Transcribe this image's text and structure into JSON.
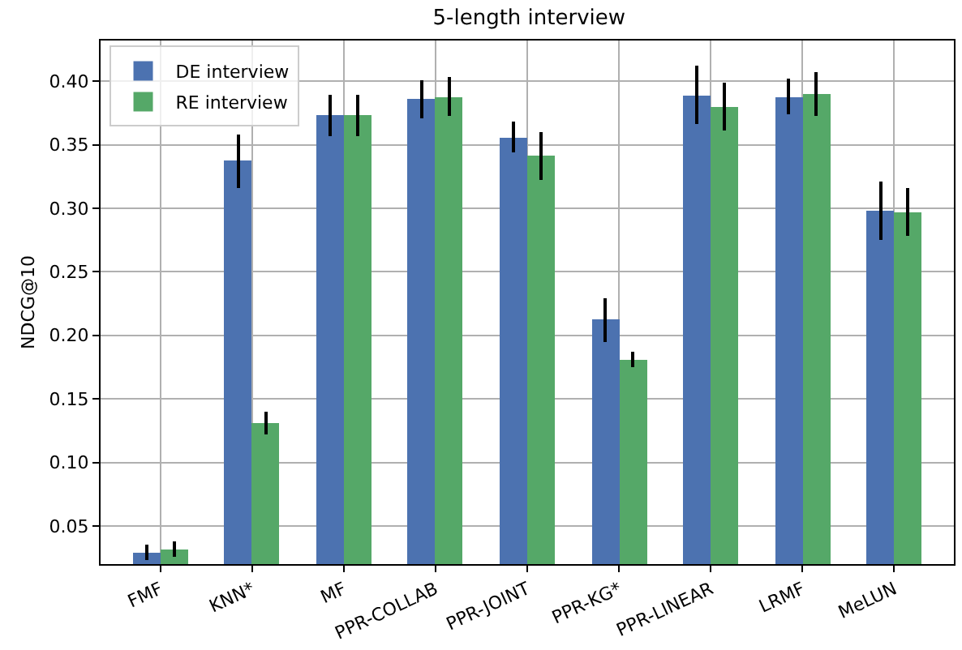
{
  "chart_data": {
    "type": "bar",
    "title": "5-length interview",
    "ylabel": "NDCG@10",
    "categories": [
      "FMF",
      "KNN*",
      "MF",
      "PPR-COLLAB",
      "PPR-JOINT",
      "PPR-KG*",
      "PPR-LINEAR",
      "LRMF",
      "MeLUN"
    ],
    "series": [
      {
        "name": "DE interview",
        "color": "#4c72b0",
        "values": [
          0.029,
          0.337,
          0.373,
          0.386,
          0.356,
          0.212,
          0.389,
          0.388,
          0.298
        ],
        "errors": [
          0.006,
          0.021,
          0.016,
          0.015,
          0.012,
          0.017,
          0.023,
          0.014,
          0.023
        ]
      },
      {
        "name": "RE interview",
        "color": "#55a868",
        "values": [
          0.032,
          0.131,
          0.373,
          0.388,
          0.341,
          0.181,
          0.38,
          0.39,
          0.297
        ],
        "errors": [
          0.006,
          0.009,
          0.016,
          0.015,
          0.019,
          0.006,
          0.019,
          0.017,
          0.019
        ]
      }
    ],
    "ylim": [
      0.02,
      0.432
    ],
    "yticks": [
      0.05,
      {
        "value": 0.1,
        "label": "0.10"
      },
      0.15,
      {
        "value": 0.2,
        "label": "0.20"
      },
      0.25,
      {
        "value": 0.3,
        "label": "0.30"
      },
      0.35,
      {
        "value": 0.4,
        "label": "0.40"
      }
    ],
    "grid": true,
    "legend": "top left"
  }
}
